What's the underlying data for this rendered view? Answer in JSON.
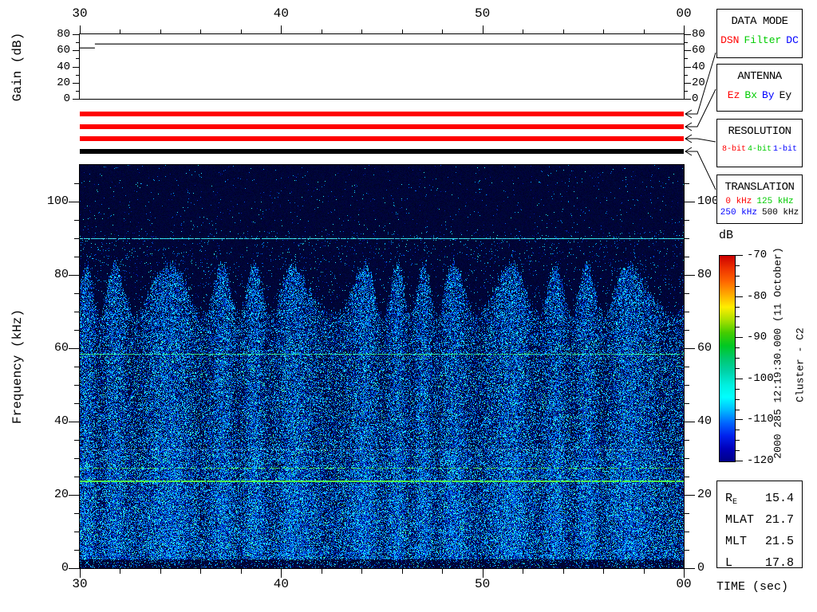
{
  "gain_plot": {
    "ylabel": "Gain (dB)",
    "ytick_labels": [
      "80",
      "60",
      "40",
      "20",
      "0"
    ],
    "y_range_db": [
      0,
      80
    ]
  },
  "time_axis": {
    "label": "TIME (sec)",
    "tick_labels": [
      "30",
      "40",
      "50",
      "00"
    ],
    "range_sec": [
      30,
      60
    ],
    "minor_step_sec": 2
  },
  "frequency_axis": {
    "label": "Frequency (kHz)",
    "tick_labels": [
      "100",
      "80",
      "60",
      "40",
      "20",
      "0"
    ],
    "tick_values": [
      100,
      80,
      60,
      40,
      20,
      0
    ],
    "range_khz": [
      0,
      110
    ],
    "minor_step_khz": 5
  },
  "status_bars": [
    {
      "name": "data-mode-bar",
      "color": "#ff0000"
    },
    {
      "name": "antenna-bar",
      "color": "#ff0000"
    },
    {
      "name": "resolution-bar",
      "color": "#ff0000"
    },
    {
      "name": "translation-bar",
      "color": "#000000"
    }
  ],
  "panels": [
    {
      "title": "DATA MODE",
      "items": [
        {
          "label": "DSN",
          "color": "#ff0000"
        },
        {
          "label": "Filter",
          "color": "#00cc00"
        },
        {
          "label": "DC",
          "color": "#0000ff"
        }
      ]
    },
    {
      "title": "ANTENNA",
      "items": [
        {
          "label": "Ez",
          "color": "#ff0000"
        },
        {
          "label": "Bx",
          "color": "#00cc00"
        },
        {
          "label": "By",
          "color": "#0000ff"
        },
        {
          "label": "Ey",
          "color": "#000000"
        }
      ]
    },
    {
      "title": "RESOLUTION",
      "items": [
        {
          "label": "8-bit",
          "color": "#ff0000"
        },
        {
          "label": "4-bit",
          "color": "#00cc00"
        },
        {
          "label": "1-bit",
          "color": "#0000ff"
        }
      ]
    },
    {
      "title": "TRANSLATION",
      "items": [
        {
          "label": "0 kHz",
          "color": "#ff0000"
        },
        {
          "label": "125 kHz",
          "color": "#00cc00"
        },
        {
          "label": "250 kHz",
          "color": "#0000ff"
        },
        {
          "label": "500 kHz",
          "color": "#000000"
        }
      ]
    }
  ],
  "colorbar": {
    "label": "dB",
    "tick_labels": [
      "-70",
      "-80",
      "-90",
      "-100",
      "-110",
      "-120"
    ],
    "range_db": [
      -120,
      -70
    ],
    "minor_step_db": 2.5,
    "gradient": [
      "#cc0000",
      "#ee3300",
      "#ff6600",
      "#ffaa00",
      "#ffee00",
      "#aae000",
      "#44cc00",
      "#00c822",
      "#00c86e",
      "#00d2a8",
      "#00eedd",
      "#00ffff",
      "#00bbff",
      "#0066ff",
      "#0022ee",
      "#0000bb",
      "#000088"
    ]
  },
  "side_annotations": {
    "datetime": "2000 285 12:19:30.000 (11 October)",
    "spacecraft": "Cluster - C2"
  },
  "ephemeris": {
    "rows": [
      {
        "label": "R",
        "sub": "E",
        "value": "15.4"
      },
      {
        "label": "MLAT",
        "sub": "",
        "value": "21.7"
      },
      {
        "label": "MLT",
        "sub": "",
        "value": "21.5"
      },
      {
        "label": "L",
        "sub": "",
        "value": "17.8"
      }
    ]
  },
  "chart_data": {
    "type": "heatmap",
    "spacecraft": "Cluster - C2",
    "start_time": "2000 285 12:19:30.000 (11 October)",
    "x": {
      "label": "TIME (sec)",
      "range": [
        30,
        60
      ],
      "major_ticks": [
        30,
        40,
        50,
        60
      ],
      "tick_labels": [
        "30",
        "40",
        "50",
        "00"
      ],
      "minor_step": 2
    },
    "y": {
      "label": "Frequency (kHz)",
      "range": [
        0,
        110
      ],
      "major_ticks": [
        0,
        20,
        40,
        60,
        80,
        100
      ],
      "minor_step": 5
    },
    "z": {
      "label": "dB",
      "range": [
        -120,
        -70
      ],
      "colormap": "rainbow: -120 dark blue, -110 cyan, -100 teal, -90 green, -80 orange-yellow, -70 red"
    },
    "narrowband_lines_khz": [
      {
        "freq_khz": 90.0,
        "appearance": "thin continuous cyan line, ~-108 dB"
      },
      {
        "freq_khz": 58.5,
        "appearance": "thin green-cyan line, ~-98 dB"
      },
      {
        "freq_khz": 32.5,
        "appearance": "very faint dashed pale-blue line"
      },
      {
        "freq_khz": 27.5,
        "appearance": "dashed green line, ~-95 dB"
      },
      {
        "freq_khz": 24.0,
        "appearance": "bright solid green line, ~-90 dB"
      }
    ],
    "broadband_noise": {
      "freq_range_khz": [
        2,
        85
      ],
      "level_db_range": [
        -115,
        -100
      ],
      "description": "dense blue/cyan speckle with quasi-periodic vertical banding every ~2 s; band tops undulate between ~70 and ~84 kHz; background above ~92 kHz is ~-120 dB dark navy"
    },
    "gain_trace": {
      "ylabel": "Gain (dB)",
      "range": [
        0,
        80
      ],
      "segments": [
        {
          "t_start_sec": 30.0,
          "t_end_sec": 30.75,
          "gain_db": 63
        },
        {
          "t_start_sec": 30.75,
          "t_end_sec": 60.0,
          "gain_db": 68
        }
      ]
    }
  }
}
